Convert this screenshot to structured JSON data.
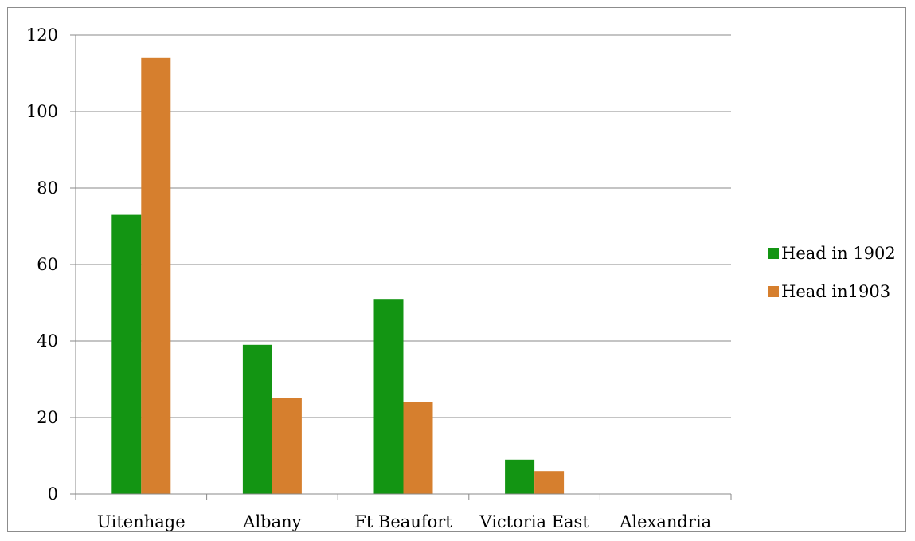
{
  "chart_data": {
    "type": "bar",
    "categories": [
      "Uitenhage",
      "Albany",
      "Ft Beaufort",
      "Victoria East",
      "Alexandria"
    ],
    "series": [
      {
        "name": "Head in 1902",
        "values": [
          73,
          39,
          51,
          9,
          0
        ],
        "color": "#139513"
      },
      {
        "name": "Head in1903",
        "values": [
          114,
          25,
          24,
          6,
          0
        ],
        "color": "#d67f2e"
      }
    ],
    "y_ticks": [
      "0",
      "20",
      "40",
      "60",
      "80",
      "100",
      "120"
    ],
    "ylim": [
      0,
      120
    ],
    "grid": true,
    "legend_position": "right"
  }
}
